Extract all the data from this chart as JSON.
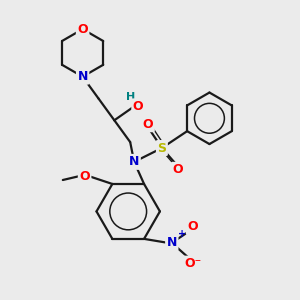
{
  "bg_color": "#ebebeb",
  "bond_color": "#1a1a1a",
  "bond_width": 1.6,
  "atom_colors": {
    "O": "#ff0000",
    "N": "#0000cc",
    "S": "#b8b800",
    "C": "#1a1a1a",
    "H": "#008080"
  },
  "figsize": [
    3.0,
    3.0
  ],
  "dpi": 100
}
